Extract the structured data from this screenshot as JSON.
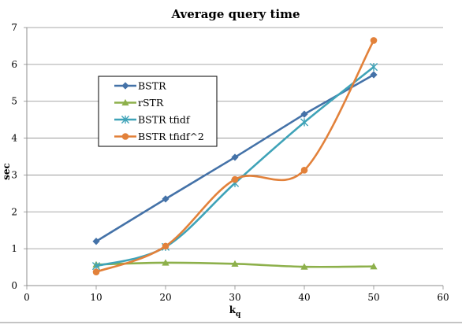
{
  "chart_data": {
    "type": "line",
    "title": "Average query time",
    "xlabel": "k",
    "xlabel_subscript": "q",
    "ylabel": "sec",
    "xlim": [
      0,
      60
    ],
    "ylim": [
      0,
      7
    ],
    "x_ticks": [
      0,
      10,
      20,
      30,
      40,
      50,
      60
    ],
    "y_ticks": [
      0,
      1,
      2,
      3,
      4,
      5,
      6,
      7
    ],
    "grid": "horizontal",
    "legend_position": "upper-left (inside plot)",
    "series": [
      {
        "name": "BSTR",
        "color": "#4472A8",
        "marker": "diamond",
        "smooth": false,
        "x": [
          10,
          20,
          30,
          40,
          50
        ],
        "y": [
          1.2,
          2.35,
          3.48,
          4.65,
          5.72
        ]
      },
      {
        "name": "rSTR",
        "color": "#8DB04B",
        "marker": "triangle",
        "smooth": true,
        "x": [
          10,
          20,
          30,
          40,
          50
        ],
        "y": [
          0.57,
          0.62,
          0.59,
          0.51,
          0.52
        ]
      },
      {
        "name": "BSTR tfidf",
        "color": "#3FA3B8",
        "marker": "star",
        "smooth": true,
        "x": [
          10,
          20,
          30,
          40,
          50
        ],
        "y": [
          0.53,
          1.05,
          2.78,
          4.43,
          5.93
        ]
      },
      {
        "name": "BSTR tfidf^2",
        "color": "#E2813A",
        "marker": "circle",
        "smooth": true,
        "x": [
          10,
          20,
          30,
          40,
          50
        ],
        "y": [
          0.37,
          1.07,
          2.88,
          3.13,
          6.65
        ]
      }
    ]
  }
}
